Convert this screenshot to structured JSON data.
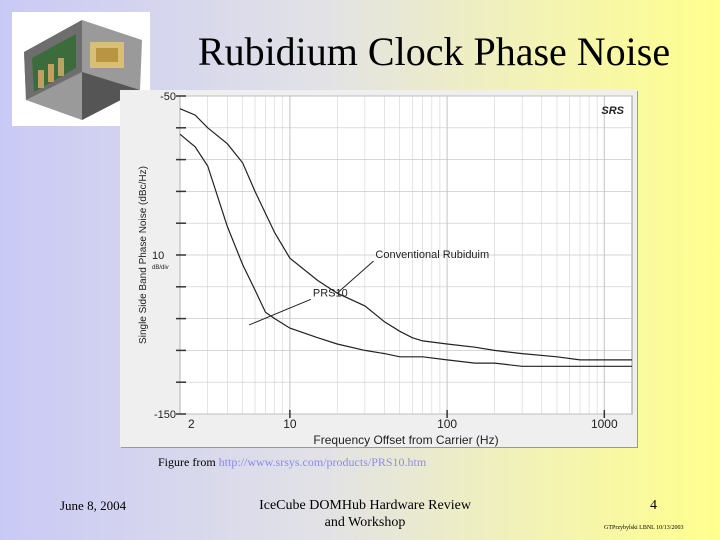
{
  "slide": {
    "title": "Rubidium Clock Phase Noise",
    "caption_prefix": "Figure from ",
    "caption_url": "http://www.srsys.com/products/PRS10.htm",
    "footer_date": "June 8, 2004",
    "footer_center_line1": "IceCube DOMHub Hardware Review",
    "footer_center_line2": "and Workshop",
    "footer_page": "4",
    "footer_credit": "GTPrzybylski LBNL 10/13/2003"
  },
  "colors": {
    "accent_blue": "#1a1aff",
    "chart_bg": "#ffffff",
    "grid": "#c8c8c8",
    "trace": "#222222"
  },
  "icons": {
    "photo": "rubidium-clock-module-photo",
    "logo": "srs-logo"
  },
  "chart_data": {
    "type": "line",
    "title": "",
    "xlabel": "Frequency Offset from Carrier (Hz)",
    "ylabel": "Single Side Band Phase Noise (dBc/Hz)",
    "xscale": "log",
    "xlim": [
      2,
      1500
    ],
    "ylim": [
      -150,
      -50
    ],
    "x_tick_labels": [
      "2",
      "10",
      "100",
      "1000"
    ],
    "y_tick_labels": [
      "-50",
      "10",
      "-150"
    ],
    "y_scale_note": "dB/div",
    "logo": "SRS",
    "grid": true,
    "series": [
      {
        "name": "Conventional Rubidium",
        "x": [
          2,
          2.5,
          3,
          4,
          5,
          6,
          8,
          10,
          15,
          20,
          30,
          40,
          50,
          60,
          70,
          100,
          150,
          200,
          300,
          500,
          700,
          1000,
          1500
        ],
        "y": [
          -54,
          -56,
          -60,
          -65,
          -71,
          -80,
          -93,
          -101,
          -108,
          -112,
          -116,
          -121,
          -124,
          -126,
          -127,
          -128,
          -129,
          -130,
          -131,
          -132,
          -133,
          -133,
          -133
        ]
      },
      {
        "name": "PRS10",
        "x": [
          2,
          2.5,
          3,
          4,
          5,
          6,
          7,
          8,
          10,
          15,
          20,
          30,
          40,
          50,
          70,
          100,
          150,
          200,
          300,
          500,
          700,
          1000,
          1500
        ],
        "y": [
          -62,
          -66,
          -72,
          -91,
          -103,
          -111,
          -118,
          -120,
          -123,
          -126,
          -128,
          -130,
          -131,
          -132,
          -132,
          -133,
          -134,
          -134,
          -135,
          -135,
          -135,
          -135,
          -135
        ]
      }
    ],
    "annotations": [
      {
        "text": "Conventional Rubiduim",
        "x": 35,
        "y": -101,
        "target_x": 20,
        "target_y": -112
      },
      {
        "text": "PRS10",
        "x": 14,
        "y": -113,
        "target_x": 5.5,
        "target_y": -122
      }
    ]
  }
}
